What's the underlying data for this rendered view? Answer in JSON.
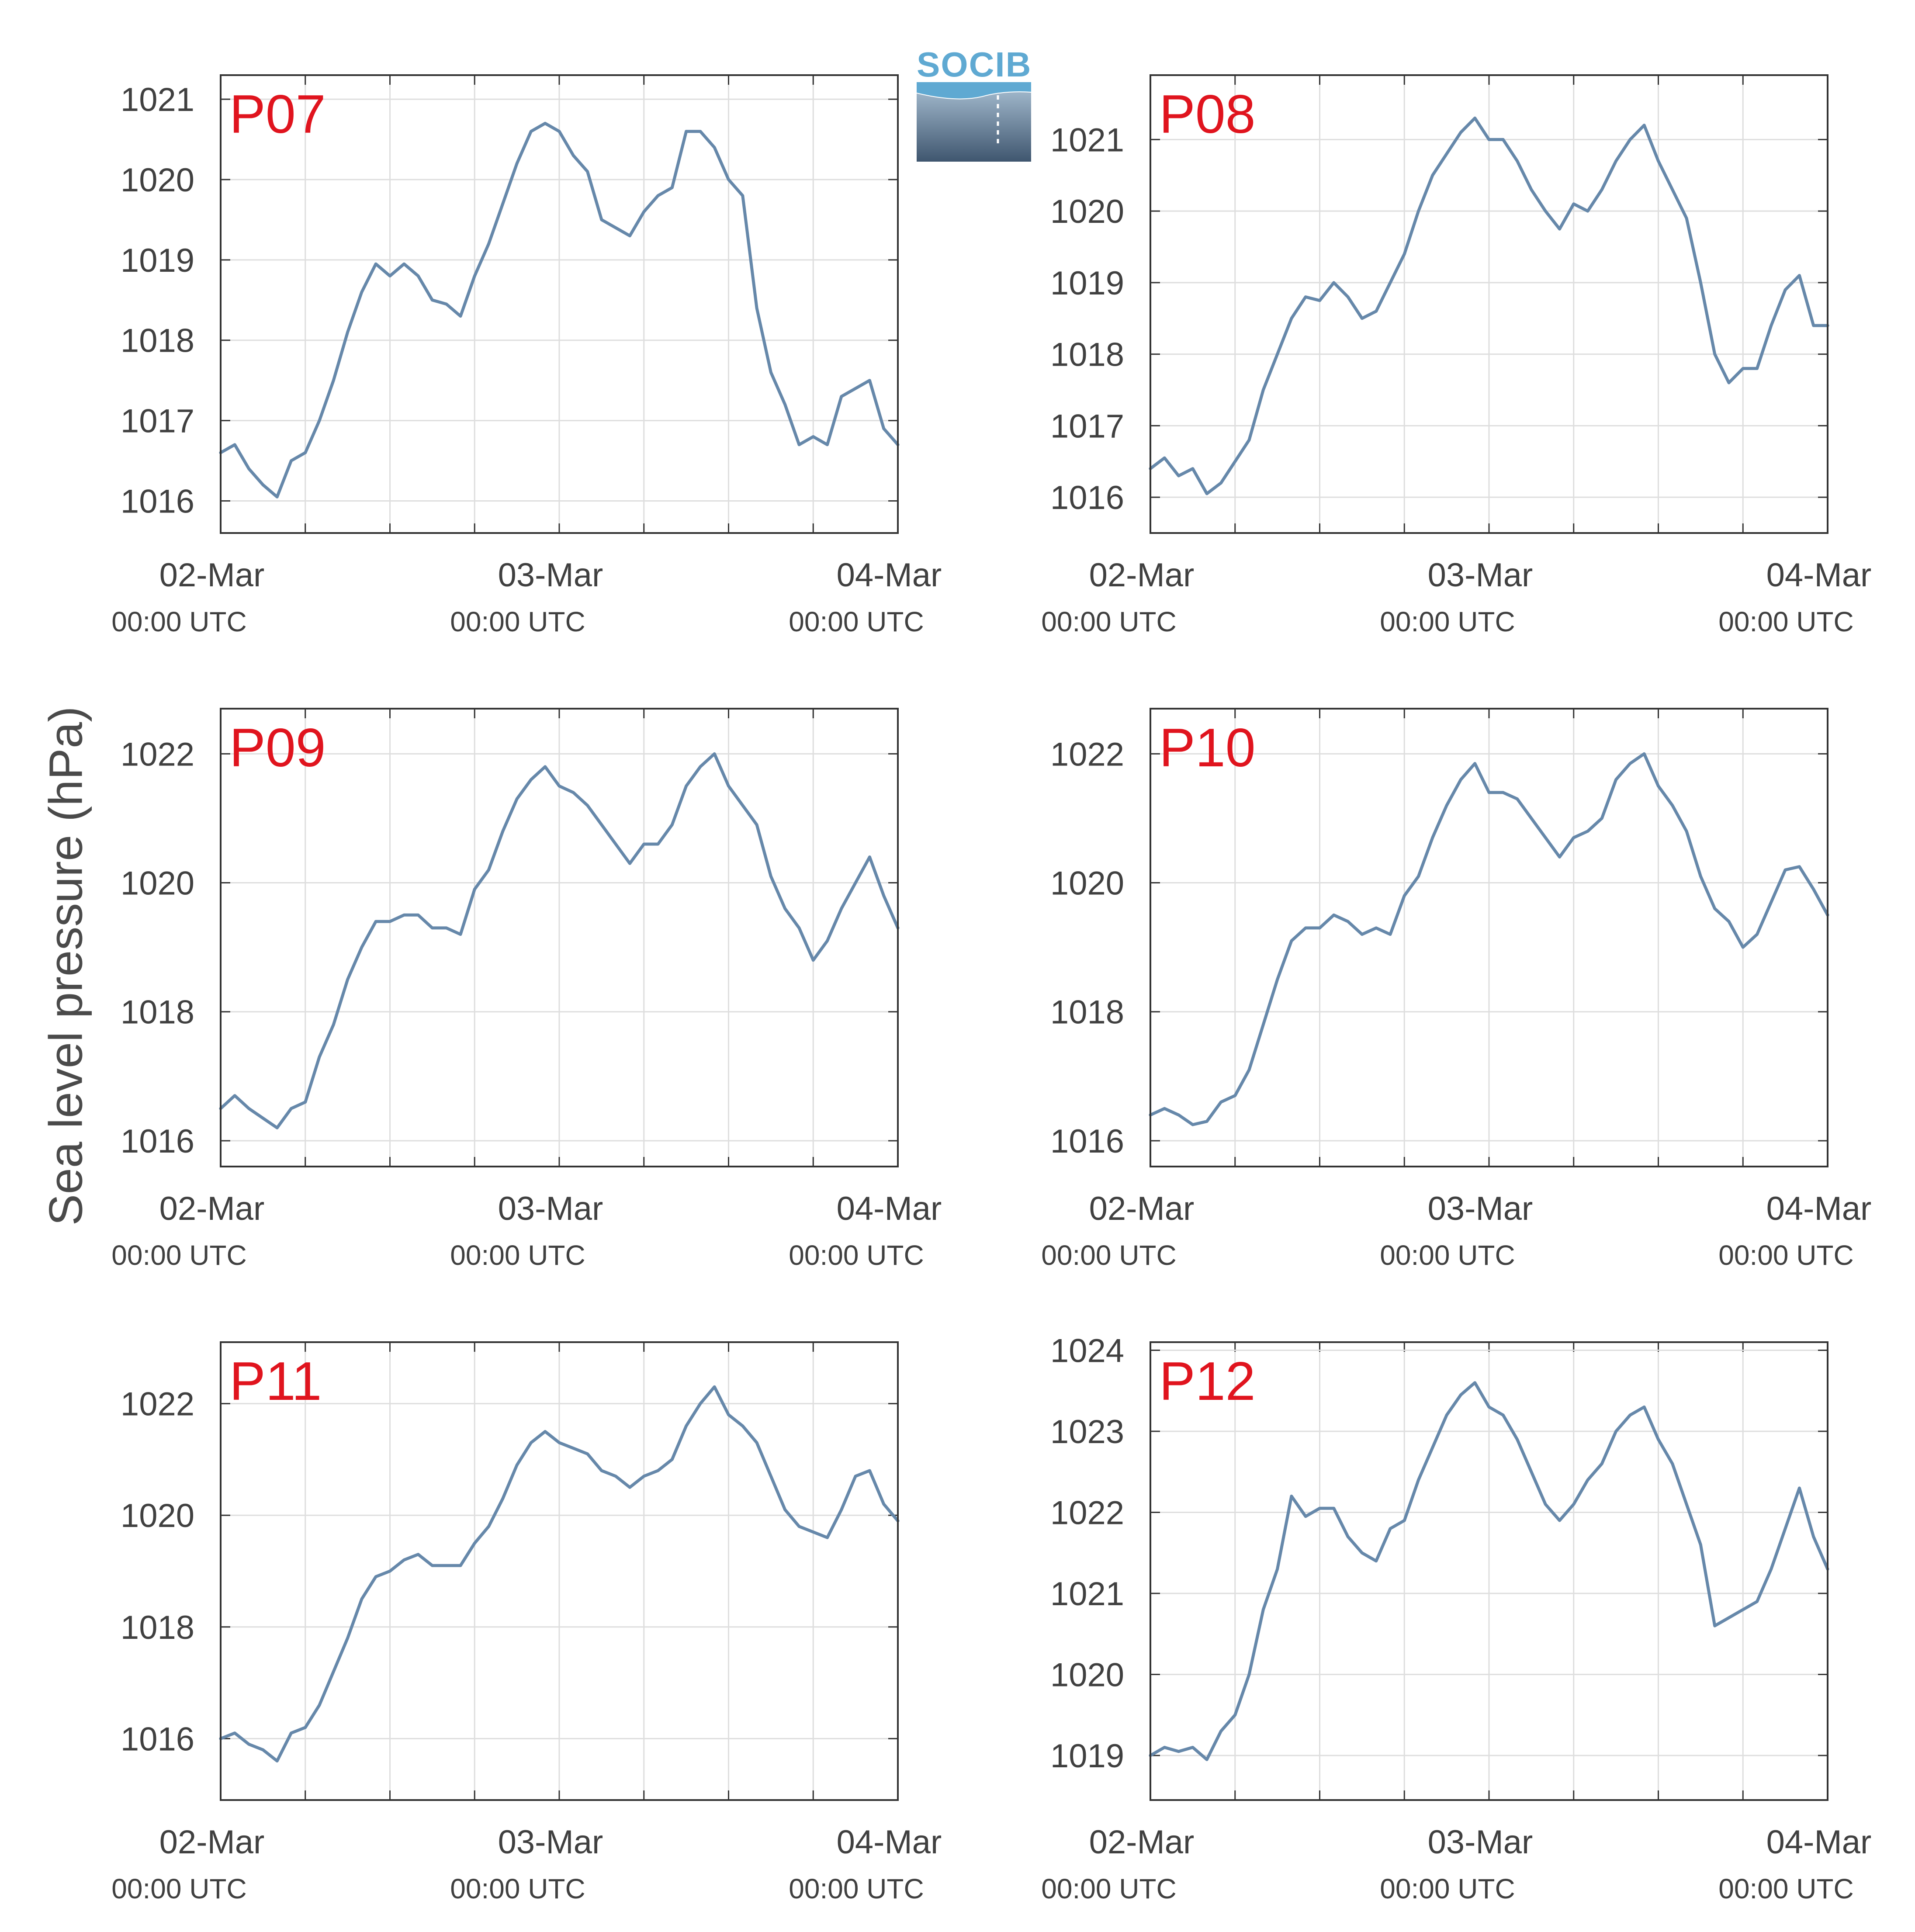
{
  "figure": {
    "ylabel": "Sea level pressure (hPa)",
    "logo_text": "SOCIB",
    "colors": {
      "line": "#6688aa",
      "station_label": "#e0141e",
      "grid": "#dedede",
      "axis": "#333333",
      "text": "#404040"
    }
  },
  "chart_data": [
    {
      "type": "line",
      "title": "P07",
      "x_unit": "hours since 02-Mar 00:00 UTC",
      "xlim": [
        0,
        48
      ],
      "ylim": [
        1015.6,
        1021.3
      ],
      "yticks": [
        1016,
        1017,
        1018,
        1019,
        1020,
        1021
      ],
      "xticks_major": [
        {
          "x": 0,
          "label": "02-Mar",
          "sublabel": "00:00 UTC"
        },
        {
          "x": 24,
          "label": "03-Mar",
          "sublabel": "00:00 UTC"
        },
        {
          "x": 48,
          "label": "04-Mar",
          "sublabel": "00:00 UTC"
        }
      ],
      "xgrid": [
        0,
        6,
        12,
        18,
        24,
        30,
        36,
        42,
        48
      ],
      "grid": true,
      "x": [
        0,
        1,
        2,
        3,
        4,
        5,
        6,
        7,
        8,
        9,
        10,
        11,
        12,
        13,
        14,
        15,
        16,
        17,
        18,
        19,
        20,
        21,
        22,
        23,
        24,
        25,
        26,
        27,
        28,
        29,
        30,
        31,
        32,
        33,
        34,
        35,
        36,
        37,
        38,
        39,
        40,
        41,
        42,
        43,
        44,
        45,
        46,
        47,
        48
      ],
      "values": [
        1016.6,
        1016.7,
        1016.4,
        1016.2,
        1016.05,
        1016.5,
        1016.6,
        1017.0,
        1017.5,
        1018.1,
        1018.6,
        1018.95,
        1018.8,
        1018.95,
        1018.8,
        1018.5,
        1018.45,
        1018.3,
        1018.8,
        1019.2,
        1019.7,
        1020.2,
        1020.6,
        1020.7,
        1020.6,
        1020.3,
        1020.1,
        1019.5,
        1019.4,
        1019.3,
        1019.6,
        1019.8,
        1019.9,
        1020.6,
        1020.6,
        1020.4,
        1020.0,
        1019.8,
        1018.4,
        1017.6,
        1017.2,
        1016.7,
        1016.8,
        1016.7,
        1017.3,
        1017.4,
        1017.5,
        1016.9,
        1016.7
      ]
    },
    {
      "type": "line",
      "title": "P08",
      "x_unit": "hours since 02-Mar 00:00 UTC",
      "xlim": [
        0,
        48
      ],
      "ylim": [
        1015.5,
        1021.9
      ],
      "yticks": [
        1016,
        1017,
        1018,
        1019,
        1020,
        1021
      ],
      "xticks_major": [
        {
          "x": 0,
          "label": "02-Mar",
          "sublabel": "00:00 UTC"
        },
        {
          "x": 24,
          "label": "03-Mar",
          "sublabel": "00:00 UTC"
        },
        {
          "x": 48,
          "label": "04-Mar",
          "sublabel": "00:00 UTC"
        }
      ],
      "xgrid": [
        0,
        6,
        12,
        18,
        24,
        30,
        36,
        42,
        48
      ],
      "grid": true,
      "x": [
        0,
        1,
        2,
        3,
        4,
        5,
        6,
        7,
        8,
        9,
        10,
        11,
        12,
        13,
        14,
        15,
        16,
        17,
        18,
        19,
        20,
        21,
        22,
        23,
        24,
        25,
        26,
        27,
        28,
        29,
        30,
        31,
        32,
        33,
        34,
        35,
        36,
        37,
        38,
        39,
        40,
        41,
        42,
        43,
        44,
        45,
        46,
        47,
        48
      ],
      "values": [
        1016.4,
        1016.55,
        1016.3,
        1016.4,
        1016.05,
        1016.2,
        1016.5,
        1016.8,
        1017.5,
        1018.0,
        1018.5,
        1018.8,
        1018.75,
        1019.0,
        1018.8,
        1018.5,
        1018.6,
        1019.0,
        1019.4,
        1020.0,
        1020.5,
        1020.8,
        1021.1,
        1021.3,
        1021.0,
        1021.0,
        1020.7,
        1020.3,
        1020.0,
        1019.75,
        1020.1,
        1020.0,
        1020.3,
        1020.7,
        1021.0,
        1021.2,
        1020.7,
        1020.3,
        1019.9,
        1019.0,
        1018.0,
        1017.6,
        1017.8,
        1017.8,
        1018.4,
        1018.9,
        1019.1,
        1018.4,
        1018.4
      ]
    },
    {
      "type": "line",
      "title": "P09",
      "x_unit": "hours since 02-Mar 00:00 UTC",
      "xlim": [
        0,
        48
      ],
      "ylim": [
        1015.6,
        1022.7
      ],
      "yticks": [
        1016,
        1018,
        1020,
        1022
      ],
      "xticks_major": [
        {
          "x": 0,
          "label": "02-Mar",
          "sublabel": "00:00 UTC"
        },
        {
          "x": 24,
          "label": "03-Mar",
          "sublabel": "00:00 UTC"
        },
        {
          "x": 48,
          "label": "04-Mar",
          "sublabel": "00:00 UTC"
        }
      ],
      "xgrid": [
        0,
        6,
        12,
        18,
        24,
        30,
        36,
        42,
        48
      ],
      "grid": true,
      "x": [
        0,
        1,
        2,
        3,
        4,
        5,
        6,
        7,
        8,
        9,
        10,
        11,
        12,
        13,
        14,
        15,
        16,
        17,
        18,
        19,
        20,
        21,
        22,
        23,
        24,
        25,
        26,
        27,
        28,
        29,
        30,
        31,
        32,
        33,
        34,
        35,
        36,
        37,
        38,
        39,
        40,
        41,
        42,
        43,
        44,
        45,
        46,
        47,
        48
      ],
      "values": [
        1016.5,
        1016.7,
        1016.5,
        1016.35,
        1016.2,
        1016.5,
        1016.6,
        1017.3,
        1017.8,
        1018.5,
        1019.0,
        1019.4,
        1019.4,
        1019.5,
        1019.5,
        1019.3,
        1019.3,
        1019.2,
        1019.9,
        1020.2,
        1020.8,
        1021.3,
        1021.6,
        1021.8,
        1021.5,
        1021.4,
        1021.2,
        1020.9,
        1020.6,
        1020.3,
        1020.6,
        1020.6,
        1020.9,
        1021.5,
        1021.8,
        1022.0,
        1021.5,
        1021.2,
        1020.9,
        1020.1,
        1019.6,
        1019.3,
        1018.8,
        1019.1,
        1019.6,
        1020.0,
        1020.4,
        1019.8,
        1019.3
      ]
    },
    {
      "type": "line",
      "title": "P10",
      "x_unit": "hours since 02-Mar 00:00 UTC",
      "xlim": [
        0,
        48
      ],
      "ylim": [
        1015.6,
        1022.7
      ],
      "yticks": [
        1016,
        1018,
        1020,
        1022
      ],
      "xticks_major": [
        {
          "x": 0,
          "label": "02-Mar",
          "sublabel": "00:00 UTC"
        },
        {
          "x": 24,
          "label": "03-Mar",
          "sublabel": "00:00 UTC"
        },
        {
          "x": 48,
          "label": "04-Mar",
          "sublabel": "00:00 UTC"
        }
      ],
      "xgrid": [
        0,
        6,
        12,
        18,
        24,
        30,
        36,
        42,
        48
      ],
      "grid": true,
      "x": [
        0,
        1,
        2,
        3,
        4,
        5,
        6,
        7,
        8,
        9,
        10,
        11,
        12,
        13,
        14,
        15,
        16,
        17,
        18,
        19,
        20,
        21,
        22,
        23,
        24,
        25,
        26,
        27,
        28,
        29,
        30,
        31,
        32,
        33,
        34,
        35,
        36,
        37,
        38,
        39,
        40,
        41,
        42,
        43,
        44,
        45,
        46,
        47,
        48
      ],
      "values": [
        1016.4,
        1016.5,
        1016.4,
        1016.25,
        1016.3,
        1016.6,
        1016.7,
        1017.1,
        1017.8,
        1018.5,
        1019.1,
        1019.3,
        1019.3,
        1019.5,
        1019.4,
        1019.2,
        1019.3,
        1019.2,
        1019.8,
        1020.1,
        1020.7,
        1021.2,
        1021.6,
        1021.85,
        1021.4,
        1021.4,
        1021.3,
        1021.0,
        1020.7,
        1020.4,
        1020.7,
        1020.8,
        1021.0,
        1021.6,
        1021.85,
        1022.0,
        1021.5,
        1021.2,
        1020.8,
        1020.1,
        1019.6,
        1019.4,
        1019.0,
        1019.2,
        1019.7,
        1020.2,
        1020.25,
        1019.9,
        1019.5
      ]
    },
    {
      "type": "line",
      "title": "P11",
      "x_unit": "hours since 02-Mar 00:00 UTC",
      "xlim": [
        0,
        48
      ],
      "ylim": [
        1014.9,
        1023.1
      ],
      "yticks": [
        1016,
        1018,
        1020,
        1022
      ],
      "xticks_major": [
        {
          "x": 0,
          "label": "02-Mar",
          "sublabel": "00:00 UTC"
        },
        {
          "x": 24,
          "label": "03-Mar",
          "sublabel": "00:00 UTC"
        },
        {
          "x": 48,
          "label": "04-Mar",
          "sublabel": "00:00 UTC"
        }
      ],
      "xgrid": [
        0,
        6,
        12,
        18,
        24,
        30,
        36,
        42,
        48
      ],
      "grid": true,
      "x": [
        0,
        1,
        2,
        3,
        4,
        5,
        6,
        7,
        8,
        9,
        10,
        11,
        12,
        13,
        14,
        15,
        16,
        17,
        18,
        19,
        20,
        21,
        22,
        23,
        24,
        25,
        26,
        27,
        28,
        29,
        30,
        31,
        32,
        33,
        34,
        35,
        36,
        37,
        38,
        39,
        40,
        41,
        42,
        43,
        44,
        45,
        46,
        47,
        48
      ],
      "values": [
        1016.0,
        1016.1,
        1015.9,
        1015.8,
        1015.6,
        1016.1,
        1016.2,
        1016.6,
        1017.2,
        1017.8,
        1018.5,
        1018.9,
        1019.0,
        1019.2,
        1019.3,
        1019.1,
        1019.1,
        1019.1,
        1019.5,
        1019.8,
        1020.3,
        1020.9,
        1021.3,
        1021.5,
        1021.3,
        1021.2,
        1021.1,
        1020.8,
        1020.7,
        1020.5,
        1020.7,
        1020.8,
        1021.0,
        1021.6,
        1022.0,
        1022.3,
        1021.8,
        1021.6,
        1021.3,
        1020.7,
        1020.1,
        1019.8,
        1019.7,
        1019.6,
        1020.1,
        1020.7,
        1020.8,
        1020.2,
        1019.9
      ]
    },
    {
      "type": "line",
      "title": "P12",
      "x_unit": "hours since 02-Mar 00:00 UTC",
      "xlim": [
        0,
        48
      ],
      "ylim": [
        1018.45,
        1024.1
      ],
      "yticks": [
        1019,
        1020,
        1021,
        1022,
        1023,
        1024
      ],
      "xticks_major": [
        {
          "x": 0,
          "label": "02-Mar",
          "sublabel": "00:00 UTC"
        },
        {
          "x": 24,
          "label": "03-Mar",
          "sublabel": "00:00 UTC"
        },
        {
          "x": 48,
          "label": "04-Mar",
          "sublabel": "00:00 UTC"
        }
      ],
      "xgrid": [
        0,
        6,
        12,
        18,
        24,
        30,
        36,
        42,
        48
      ],
      "grid": true,
      "x": [
        0,
        1,
        2,
        3,
        4,
        5,
        6,
        7,
        8,
        9,
        10,
        11,
        12,
        13,
        14,
        15,
        16,
        17,
        18,
        19,
        20,
        21,
        22,
        23,
        24,
        25,
        26,
        27,
        28,
        29,
        30,
        31,
        32,
        33,
        34,
        35,
        36,
        37,
        38,
        39,
        40,
        41,
        42,
        43,
        44,
        45,
        46,
        47,
        48
      ],
      "values": [
        1019.0,
        1019.1,
        1019.05,
        1019.1,
        1018.95,
        1019.3,
        1019.5,
        1020.0,
        1020.8,
        1021.3,
        1022.2,
        1021.95,
        1022.05,
        1022.05,
        1021.7,
        1021.5,
        1021.4,
        1021.8,
        1021.9,
        1022.4,
        1022.8,
        1023.2,
        1023.45,
        1023.6,
        1023.3,
        1023.2,
        1022.9,
        1022.5,
        1022.1,
        1021.9,
        1022.1,
        1022.4,
        1022.6,
        1023.0,
        1023.2,
        1023.3,
        1022.9,
        1022.6,
        1022.1,
        1021.6,
        1020.6,
        1020.7,
        1020.8,
        1020.9,
        1021.3,
        1021.8,
        1022.3,
        1021.7,
        1021.3
      ]
    }
  ]
}
